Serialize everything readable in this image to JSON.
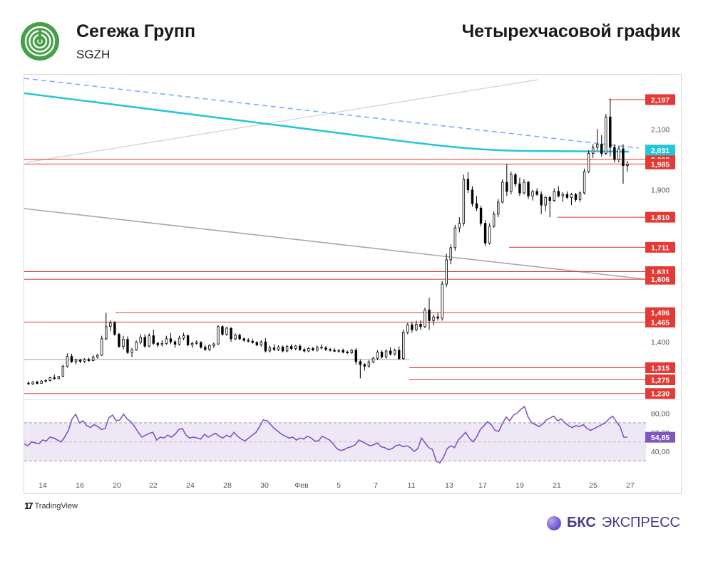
{
  "header": {
    "company": "Сегежа Групп",
    "ticker": "SGZH",
    "chart_title": "Четырехчасовой график"
  },
  "footer": {
    "tradingview": "TradingView",
    "bcs_bold": "БКС",
    "bcs_rest": "ЭКСПРЕСС"
  },
  "colors": {
    "up_candle": "#ffffff",
    "down_candle": "#000000",
    "level_line": "#e53935",
    "level_tag": "#e53935",
    "ma_line": "#26c6da",
    "trend_dashed": "#82a9ff",
    "trend_gray": "#9e9e9e",
    "rsi_line": "#7e57c2",
    "rsi_band": "#ede7f6",
    "logo": "#43a047"
  },
  "chart_data": {
    "type": "candlestick",
    "x_ticks": [
      "14",
      "16",
      "20",
      "22",
      "24",
      "28",
      "30",
      "Фев",
      "5",
      "7",
      "11",
      "13",
      "17",
      "19",
      "21",
      "25",
      "27"
    ],
    "y_ticks": [
      "2,100",
      "1,900",
      "1,400"
    ],
    "ylim": [
      1.22,
      2.26
    ],
    "levels": [
      "2,197",
      "2,000",
      "1,985",
      "1,810",
      "1,711",
      "1,631",
      "1,606",
      "1,496",
      "1,465",
      "1,315",
      "1,275",
      "1,230"
    ],
    "ma_last": "2,031",
    "ohlc": [
      [
        1.264,
        1.27,
        1.258,
        1.262
      ],
      [
        1.262,
        1.271,
        1.258,
        1.268
      ],
      [
        1.268,
        1.272,
        1.26,
        1.263
      ],
      [
        1.263,
        1.274,
        1.262,
        1.271
      ],
      [
        1.271,
        1.277,
        1.266,
        1.273
      ],
      [
        1.273,
        1.285,
        1.27,
        1.282
      ],
      [
        1.282,
        1.292,
        1.275,
        1.279
      ],
      [
        1.279,
        1.288,
        1.277,
        1.286
      ],
      [
        1.286,
        1.325,
        1.284,
        1.32
      ],
      [
        1.32,
        1.362,
        1.315,
        1.352
      ],
      [
        1.352,
        1.361,
        1.331,
        1.334
      ],
      [
        1.334,
        1.345,
        1.326,
        1.34
      ],
      [
        1.34,
        1.344,
        1.33,
        1.336
      ],
      [
        1.336,
        1.346,
        1.331,
        1.342
      ],
      [
        1.342,
        1.348,
        1.334,
        1.338
      ],
      [
        1.338,
        1.356,
        1.336,
        1.35
      ],
      [
        1.35,
        1.36,
        1.345,
        1.356
      ],
      [
        1.356,
        1.42,
        1.354,
        1.41
      ],
      [
        1.41,
        1.495,
        1.405,
        1.45
      ],
      [
        1.45,
        1.47,
        1.435,
        1.462
      ],
      [
        1.462,
        1.468,
        1.42,
        1.425
      ],
      [
        1.425,
        1.43,
        1.38,
        1.385
      ],
      [
        1.385,
        1.42,
        1.375,
        1.408
      ],
      [
        1.408,
        1.418,
        1.36,
        1.365
      ],
      [
        1.365,
        1.38,
        1.35,
        1.374
      ],
      [
        1.374,
        1.405,
        1.37,
        1.398
      ],
      [
        1.398,
        1.425,
        1.392,
        1.415
      ],
      [
        1.415,
        1.425,
        1.38,
        1.386
      ],
      [
        1.386,
        1.428,
        1.382,
        1.42
      ],
      [
        1.42,
        1.44,
        1.39,
        1.395
      ],
      [
        1.395,
        1.4,
        1.382,
        1.39
      ],
      [
        1.39,
        1.405,
        1.385,
        1.395
      ],
      [
        1.395,
        1.42,
        1.39,
        1.41
      ],
      [
        1.41,
        1.43,
        1.392,
        1.4
      ],
      [
        1.4,
        1.405,
        1.38,
        1.392
      ],
      [
        1.392,
        1.42,
        1.388,
        1.412
      ],
      [
        1.412,
        1.43,
        1.405,
        1.42
      ],
      [
        1.42,
        1.425,
        1.385,
        1.39
      ],
      [
        1.39,
        1.4,
        1.38,
        1.395
      ],
      [
        1.395,
        1.405,
        1.39,
        1.398
      ],
      [
        1.398,
        1.402,
        1.378,
        1.382
      ],
      [
        1.382,
        1.39,
        1.37,
        1.375
      ],
      [
        1.375,
        1.392,
        1.37,
        1.388
      ],
      [
        1.388,
        1.398,
        1.38,
        1.393
      ],
      [
        1.393,
        1.455,
        1.39,
        1.45
      ],
      [
        1.45,
        1.455,
        1.42,
        1.425
      ],
      [
        1.425,
        1.45,
        1.42,
        1.445
      ],
      [
        1.445,
        1.448,
        1.4,
        1.41
      ],
      [
        1.41,
        1.428,
        1.405,
        1.422
      ],
      [
        1.422,
        1.427,
        1.405,
        1.41
      ],
      [
        1.41,
        1.415,
        1.4,
        1.405
      ],
      [
        1.405,
        1.412,
        1.398,
        1.402
      ],
      [
        1.402,
        1.41,
        1.394,
        1.398
      ],
      [
        1.398,
        1.402,
        1.385,
        1.39
      ],
      [
        1.39,
        1.405,
        1.385,
        1.4
      ],
      [
        1.4,
        1.412,
        1.365,
        1.37
      ],
      [
        1.37,
        1.388,
        1.365,
        1.38
      ],
      [
        1.38,
        1.392,
        1.37,
        1.375
      ],
      [
        1.375,
        1.388,
        1.37,
        1.383
      ],
      [
        1.383,
        1.388,
        1.365,
        1.37
      ],
      [
        1.37,
        1.39,
        1.365,
        1.385
      ],
      [
        1.385,
        1.392,
        1.372,
        1.378
      ],
      [
        1.378,
        1.39,
        1.372,
        1.386
      ],
      [
        1.386,
        1.392,
        1.37,
        1.374
      ],
      [
        1.374,
        1.38,
        1.365,
        1.37
      ],
      [
        1.37,
        1.382,
        1.366,
        1.378
      ],
      [
        1.378,
        1.384,
        1.37,
        1.373
      ],
      [
        1.373,
        1.388,
        1.368,
        1.382
      ],
      [
        1.382,
        1.392,
        1.376,
        1.38
      ],
      [
        1.38,
        1.386,
        1.37,
        1.375
      ],
      [
        1.375,
        1.38,
        1.368,
        1.372
      ],
      [
        1.372,
        1.38,
        1.366,
        1.369
      ],
      [
        1.369,
        1.376,
        1.364,
        1.372
      ],
      [
        1.372,
        1.378,
        1.362,
        1.366
      ],
      [
        1.366,
        1.372,
        1.36,
        1.364
      ],
      [
        1.364,
        1.376,
        1.36,
        1.372
      ],
      [
        1.372,
        1.38,
        1.325,
        1.335
      ],
      [
        1.335,
        1.342,
        1.28,
        1.325
      ],
      [
        1.325,
        1.33,
        1.305,
        1.32
      ],
      [
        1.32,
        1.34,
        1.315,
        1.334
      ],
      [
        1.334,
        1.35,
        1.33,
        1.346
      ],
      [
        1.346,
        1.372,
        1.34,
        1.366
      ],
      [
        1.366,
        1.372,
        1.345,
        1.35
      ],
      [
        1.35,
        1.375,
        1.345,
        1.37
      ],
      [
        1.37,
        1.382,
        1.355,
        1.36
      ],
      [
        1.36,
        1.378,
        1.355,
        1.372
      ],
      [
        1.372,
        1.385,
        1.34,
        1.345
      ],
      [
        1.345,
        1.44,
        1.34,
        1.432
      ],
      [
        1.432,
        1.462,
        1.425,
        1.456
      ],
      [
        1.456,
        1.465,
        1.43,
        1.44
      ],
      [
        1.44,
        1.47,
        1.435,
        1.458
      ],
      [
        1.458,
        1.47,
        1.44,
        1.45
      ],
      [
        1.45,
        1.512,
        1.445,
        1.505
      ],
      [
        1.505,
        1.545,
        1.44,
        1.47
      ],
      [
        1.47,
        1.49,
        1.455,
        1.482
      ],
      [
        1.482,
        1.495,
        1.47,
        1.478
      ],
      [
        1.478,
        1.6,
        1.47,
        1.59
      ],
      [
        1.59,
        1.69,
        1.58,
        1.67
      ],
      [
        1.67,
        1.72,
        1.655,
        1.71
      ],
      [
        1.71,
        1.785,
        1.7,
        1.775
      ],
      [
        1.775,
        1.81,
        1.76,
        1.79
      ],
      [
        1.79,
        1.95,
        1.78,
        1.935
      ],
      [
        1.935,
        1.958,
        1.89,
        1.9
      ],
      [
        1.9,
        1.912,
        1.845,
        1.855
      ],
      [
        1.855,
        1.88,
        1.83,
        1.84
      ],
      [
        1.84,
        1.848,
        1.78,
        1.79
      ],
      [
        1.79,
        1.8,
        1.715,
        1.725
      ],
      [
        1.725,
        1.79,
        1.72,
        1.78
      ],
      [
        1.78,
        1.83,
        1.775,
        1.82
      ],
      [
        1.82,
        1.87,
        1.81,
        1.86
      ],
      [
        1.86,
        1.935,
        1.855,
        1.925
      ],
      [
        1.925,
        1.985,
        1.88,
        1.895
      ],
      [
        1.895,
        1.96,
        1.885,
        1.95
      ],
      [
        1.95,
        1.955,
        1.91,
        1.92
      ],
      [
        1.92,
        1.94,
        1.88,
        1.89
      ],
      [
        1.89,
        1.935,
        1.885,
        1.925
      ],
      [
        1.925,
        1.93,
        1.87,
        1.88
      ],
      [
        1.88,
        1.9,
        1.865,
        1.895
      ],
      [
        1.895,
        1.905,
        1.88,
        1.885
      ],
      [
        1.885,
        1.895,
        1.82,
        1.85
      ],
      [
        1.85,
        1.88,
        1.83,
        1.875
      ],
      [
        1.875,
        1.88,
        1.81,
        1.865
      ],
      [
        1.865,
        1.905,
        1.86,
        1.895
      ],
      [
        1.895,
        1.912,
        1.875,
        1.88
      ],
      [
        1.88,
        1.892,
        1.86,
        1.885
      ],
      [
        1.885,
        1.895,
        1.87,
        1.875
      ],
      [
        1.875,
        1.89,
        1.85,
        1.885
      ],
      [
        1.885,
        1.89,
        1.86,
        1.868
      ],
      [
        1.868,
        1.895,
        1.86,
        1.89
      ],
      [
        1.89,
        1.97,
        1.885,
        1.96
      ],
      [
        1.96,
        2.03,
        1.955,
        2.02
      ],
      [
        2.02,
        2.05,
        2.005,
        2.04
      ],
      [
        2.04,
        2.1,
        2.03,
        2.05
      ],
      [
        2.05,
        2.08,
        2.01,
        2.02
      ],
      [
        2.02,
        2.15,
        2.015,
        2.14
      ],
      [
        2.14,
        2.2,
        2.01,
        2.04
      ],
      [
        2.04,
        2.05,
        1.99,
        2.0
      ],
      [
        2.0,
        2.045,
        1.99,
        2.035
      ],
      [
        2.035,
        2.05,
        1.92,
        1.98
      ],
      [
        1.98,
        1.995,
        1.96,
        1.985
      ]
    ],
    "rsi": {
      "label_last": "54,85",
      "ticks": [
        "80,00",
        "60,00",
        "40,00"
      ],
      "ylim": [
        20,
        90
      ],
      "bands": [
        70,
        30
      ],
      "midline": 50,
      "values": [
        48,
        46,
        50,
        49,
        48,
        52,
        51,
        55,
        54,
        52,
        50,
        55,
        62,
        74,
        79,
        70,
        72,
        67,
        65,
        68,
        66,
        63,
        64,
        75,
        78,
        72,
        73,
        79,
        74,
        71,
        66,
        60,
        55,
        57,
        59,
        60,
        52,
        55,
        54,
        57,
        55,
        58,
        63,
        64,
        57,
        54,
        55,
        54,
        53,
        58,
        55,
        57,
        59,
        56,
        54,
        57,
        55,
        60,
        56,
        53,
        51,
        54,
        57,
        60,
        66,
        73,
        72,
        68,
        64,
        61,
        58,
        56,
        54,
        55,
        52,
        54,
        53,
        56,
        54,
        51,
        51,
        56,
        54,
        52,
        48,
        43,
        41,
        42,
        44,
        45,
        47,
        52,
        50,
        48,
        46,
        47,
        49,
        45,
        44,
        42,
        43,
        46,
        47,
        45,
        46,
        44,
        40,
        43,
        54,
        49,
        44,
        42,
        30,
        28,
        34,
        43,
        46,
        44,
        52,
        56,
        60,
        54,
        50,
        55,
        63,
        67,
        71,
        68,
        62,
        61,
        69,
        76,
        72,
        78,
        80,
        84,
        87,
        76,
        70,
        68,
        66,
        69,
        73,
        75,
        77,
        72,
        74,
        70,
        67,
        65,
        67,
        66,
        68,
        64,
        62,
        64,
        66,
        68,
        70,
        74,
        77,
        71,
        66,
        55,
        55
      ]
    }
  }
}
